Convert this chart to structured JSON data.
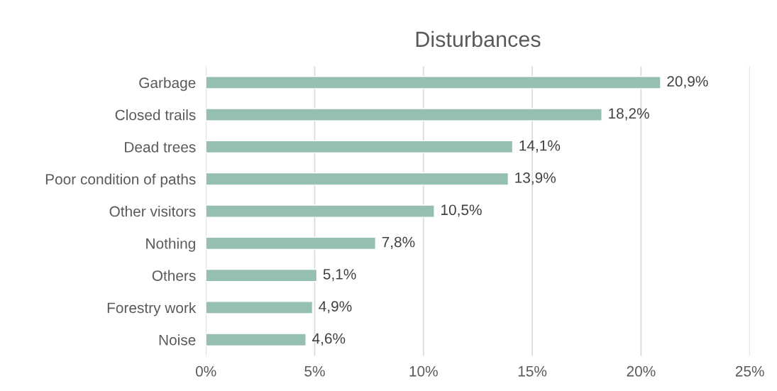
{
  "chart_data": {
    "type": "bar",
    "title": "Disturbances",
    "orientation": "horizontal",
    "categories": [
      "Garbage",
      "Closed trails",
      "Dead trees",
      "Poor condition of paths",
      "Other visitors",
      "Nothing",
      "Others",
      "Forestry work",
      "Noise"
    ],
    "values": [
      20.9,
      18.2,
      14.1,
      13.9,
      10.5,
      7.8,
      5.1,
      4.9,
      4.6
    ],
    "value_labels": [
      "20,9%",
      "18,2%",
      "14,1%",
      "13,9%",
      "10,5%",
      "7,8%",
      "5,1%",
      "4,9%",
      "4,6%"
    ],
    "color": "#96bfb3",
    "xlim": [
      0,
      25
    ],
    "xticks": [
      {
        "value": 0,
        "label": "0%"
      },
      {
        "value": 5,
        "label": "5%"
      },
      {
        "value": 10,
        "label": "10%"
      },
      {
        "value": 15,
        "label": "15%"
      },
      {
        "value": 20,
        "label": "20%"
      },
      {
        "value": 25,
        "label": "25%"
      }
    ],
    "grid": "x"
  }
}
